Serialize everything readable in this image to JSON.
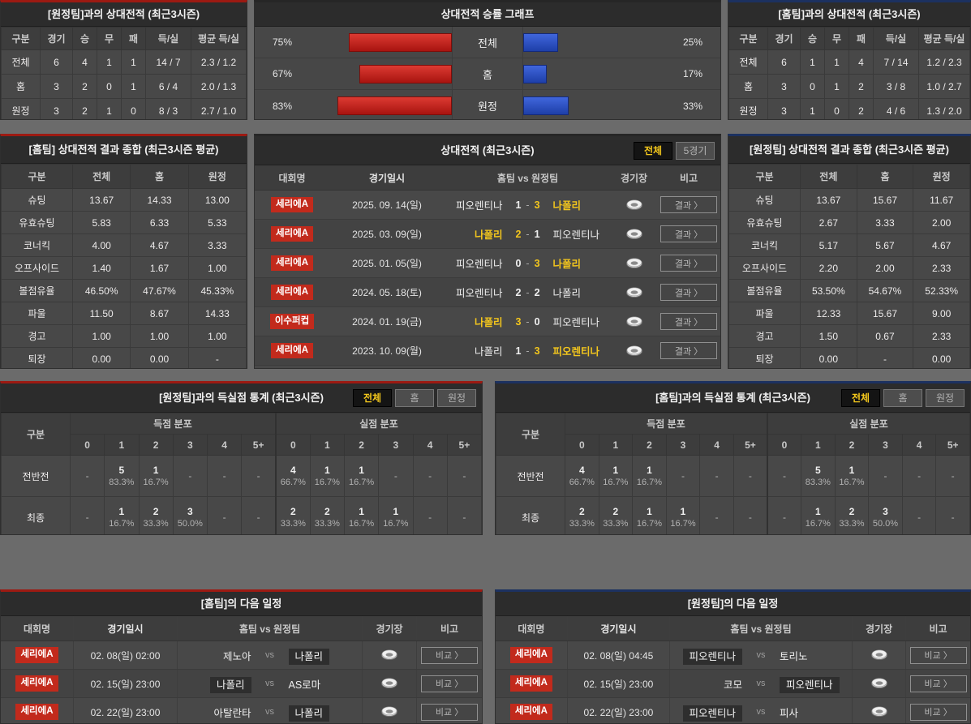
{
  "empty_text": "-",
  "vs_label": "vs",
  "score_separator": "-",
  "accent_colors": {
    "home_side": "#9c1a12",
    "away_side": "#1c3160",
    "win_highlight": "#f3c61d",
    "badge": "#c22a1c"
  },
  "top_left": {
    "title": "[원정팀]과의 상대전적 (최근3시즌)",
    "headers": [
      "구분",
      "경기",
      "승",
      "무",
      "패",
      "득/실",
      "평균 득/실"
    ],
    "rows": [
      [
        "전체",
        "6",
        "4",
        "1",
        "1",
        "14 / 7",
        "2.3 / 1.2"
      ],
      [
        "홈",
        "3",
        "2",
        "0",
        "1",
        "6 / 4",
        "2.0 / 1.3"
      ],
      [
        "원정",
        "3",
        "2",
        "1",
        "0",
        "8 / 3",
        "2.7 / 1.0"
      ]
    ]
  },
  "top_right": {
    "title": "[홈팀]과의 상대전적 (최근3시즌)",
    "headers": [
      "구분",
      "경기",
      "승",
      "무",
      "패",
      "득/실",
      "평균 득/실"
    ],
    "rows": [
      [
        "전체",
        "6",
        "1",
        "1",
        "4",
        "7 / 14",
        "1.2 / 2.3"
      ],
      [
        "홈",
        "3",
        "0",
        "1",
        "2",
        "3 / 8",
        "1.0 / 2.7"
      ],
      [
        "원정",
        "3",
        "1",
        "0",
        "2",
        "4 / 6",
        "1.3 / 2.0"
      ]
    ]
  },
  "chart": {
    "type": "bar",
    "title": "상대전적 승률 그래프",
    "categories": [
      "전체",
      "홈",
      "원정"
    ],
    "home_win_pct": [
      75,
      67,
      83
    ],
    "away_win_pct": [
      25,
      17,
      33
    ],
    "home_color": "#c9231d",
    "away_color": "#2a50c8"
  },
  "stats_home": {
    "title": "[홈팀] 상대전적 결과 종합 (최근3시즌 평균)",
    "headers": [
      "구분",
      "전체",
      "홈",
      "원정"
    ],
    "rows": [
      [
        "슈팅",
        "13.67",
        "14.33",
        "13.00"
      ],
      [
        "유효슈팅",
        "5.83",
        "6.33",
        "5.33"
      ],
      [
        "코너킥",
        "4.00",
        "4.67",
        "3.33"
      ],
      [
        "오프사이드",
        "1.40",
        "1.67",
        "1.00"
      ],
      [
        "볼점유율",
        "46.50%",
        "47.67%",
        "45.33%"
      ],
      [
        "파울",
        "11.50",
        "8.67",
        "14.33"
      ],
      [
        "경고",
        "1.00",
        "1.00",
        "1.00"
      ],
      [
        "퇴장",
        "0.00",
        "0.00",
        "-"
      ]
    ]
  },
  "stats_away": {
    "title": "[원정팀] 상대전적 결과 종합 (최근3시즌 평균)",
    "headers": [
      "구분",
      "전체",
      "홈",
      "원정"
    ],
    "rows": [
      [
        "슈팅",
        "13.67",
        "15.67",
        "11.67"
      ],
      [
        "유효슈팅",
        "2.67",
        "3.33",
        "2.00"
      ],
      [
        "코너킥",
        "5.17",
        "5.67",
        "4.67"
      ],
      [
        "오프사이드",
        "2.20",
        "2.00",
        "2.33"
      ],
      [
        "볼점유율",
        "53.50%",
        "54.67%",
        "52.33%"
      ],
      [
        "파울",
        "12.33",
        "15.67",
        "9.00"
      ],
      [
        "경고",
        "1.50",
        "0.67",
        "2.33"
      ],
      [
        "퇴장",
        "0.00",
        "-",
        "0.00"
      ]
    ]
  },
  "h2h": {
    "title": "상대전적 (최근3시즌)",
    "toggles": [
      {
        "label": "전체",
        "key": "all",
        "active": true
      },
      {
        "label": "5경기",
        "key": "5games",
        "active": false
      }
    ],
    "headers": [
      "대회명",
      "경기일시",
      "홈팀  vs  원정팀",
      "경기장",
      "비고"
    ],
    "action_label": "결과 〉",
    "rows": [
      {
        "league": "세리에A",
        "date": "2025. 09. 14(일)",
        "home": "피오렌티나",
        "hs": "1",
        "as": "3",
        "away": "나폴리",
        "win": "away"
      },
      {
        "league": "세리에A",
        "date": "2025. 03. 09(일)",
        "home": "나폴리",
        "hs": "2",
        "as": "1",
        "away": "피오렌티나",
        "win": "home"
      },
      {
        "league": "세리에A",
        "date": "2025. 01. 05(일)",
        "home": "피오렌티나",
        "hs": "0",
        "as": "3",
        "away": "나폴리",
        "win": "away"
      },
      {
        "league": "세리에A",
        "date": "2024. 05. 18(토)",
        "home": "피오렌티나",
        "hs": "2",
        "as": "2",
        "away": "나폴리",
        "win": "draw"
      },
      {
        "league": "이수퍼컵",
        "date": "2024. 01. 19(금)",
        "home": "나폴리",
        "hs": "3",
        "as": "0",
        "away": "피오렌티나",
        "win": "home"
      },
      {
        "league": "세리에A",
        "date": "2023. 10. 09(월)",
        "home": "나폴리",
        "hs": "1",
        "as": "3",
        "away": "피오렌티나",
        "win": "away"
      }
    ]
  },
  "goals_left": {
    "title": "[원정팀]과의 득실점 통계 (최근3시즌)",
    "toggles": [
      {
        "label": "전체",
        "key": "all",
        "active": true
      },
      {
        "label": "홈",
        "key": "home",
        "active": false
      },
      {
        "label": "원정",
        "key": "away",
        "active": false
      }
    ],
    "corner": "구분",
    "groups": [
      "득점 분포",
      "실점 분포"
    ],
    "cols": [
      "0",
      "1",
      "2",
      "3",
      "4",
      "5+"
    ],
    "rows": [
      {
        "label": "전반전",
        "scored": [
          null,
          {
            "n": "5",
            "p": "83.3%"
          },
          {
            "n": "1",
            "p": "16.7%"
          },
          null,
          null,
          null
        ],
        "conceded": [
          {
            "n": "4",
            "p": "66.7%"
          },
          {
            "n": "1",
            "p": "16.7%"
          },
          {
            "n": "1",
            "p": "16.7%"
          },
          null,
          null,
          null
        ]
      },
      {
        "label": "최종",
        "scored": [
          null,
          {
            "n": "1",
            "p": "16.7%"
          },
          {
            "n": "2",
            "p": "33.3%"
          },
          {
            "n": "3",
            "p": "50.0%"
          },
          null,
          null
        ],
        "conceded": [
          {
            "n": "2",
            "p": "33.3%"
          },
          {
            "n": "2",
            "p": "33.3%"
          },
          {
            "n": "1",
            "p": "16.7%"
          },
          {
            "n": "1",
            "p": "16.7%"
          },
          null,
          null
        ]
      }
    ]
  },
  "goals_right": {
    "title": "[홈팀]과의 득실점 통계 (최근3시즌)",
    "toggles": [
      {
        "label": "전체",
        "key": "all",
        "active": true
      },
      {
        "label": "홈",
        "key": "home",
        "active": false
      },
      {
        "label": "원정",
        "key": "away",
        "active": false
      }
    ],
    "corner": "구분",
    "groups": [
      "득점 분포",
      "실점 분포"
    ],
    "cols": [
      "0",
      "1",
      "2",
      "3",
      "4",
      "5+"
    ],
    "rows": [
      {
        "label": "전반전",
        "scored": [
          {
            "n": "4",
            "p": "66.7%"
          },
          {
            "n": "1",
            "p": "16.7%"
          },
          {
            "n": "1",
            "p": "16.7%"
          },
          null,
          null,
          null
        ],
        "conceded": [
          null,
          {
            "n": "5",
            "p": "83.3%"
          },
          {
            "n": "1",
            "p": "16.7%"
          },
          null,
          null,
          null
        ]
      },
      {
        "label": "최종",
        "scored": [
          {
            "n": "2",
            "p": "33.3%"
          },
          {
            "n": "2",
            "p": "33.3%"
          },
          {
            "n": "1",
            "p": "16.7%"
          },
          {
            "n": "1",
            "p": "16.7%"
          },
          null,
          null
        ],
        "conceded": [
          null,
          {
            "n": "1",
            "p": "16.7%"
          },
          {
            "n": "2",
            "p": "33.3%"
          },
          {
            "n": "3",
            "p": "50.0%"
          },
          null,
          null
        ]
      }
    ]
  },
  "schedule_home": {
    "title": "[홈팀]의 다음 일정",
    "headers": [
      "대회명",
      "경기일시",
      "홈팀  vs  원정팀",
      "경기장",
      "비고"
    ],
    "action_label": "비교 〉",
    "rows": [
      {
        "league": "세리에A",
        "date": "02. 08(일) 02:00",
        "home": "제노아",
        "away": "나폴리",
        "highlight": "away"
      },
      {
        "league": "세리에A",
        "date": "02. 15(일) 23:00",
        "home": "나폴리",
        "away": "AS로마",
        "highlight": "home"
      },
      {
        "league": "세리에A",
        "date": "02. 22(일) 23:00",
        "home": "아탈란타",
        "away": "나폴리",
        "highlight": "away"
      }
    ]
  },
  "schedule_away": {
    "title": "[원정팀]의 다음 일정",
    "headers": [
      "대회명",
      "경기일시",
      "홈팀  vs  원정팀",
      "경기장",
      "비고"
    ],
    "action_label": "비교 〉",
    "rows": [
      {
        "league": "세리에A",
        "date": "02. 08(일) 04:45",
        "home": "피오렌티나",
        "away": "토리노",
        "highlight": "home"
      },
      {
        "league": "세리에A",
        "date": "02. 15(일) 23:00",
        "home": "코모",
        "away": "피오렌티나",
        "highlight": "away"
      },
      {
        "league": "세리에A",
        "date": "02. 22(일) 23:00",
        "home": "피오렌티나",
        "away": "피사",
        "highlight": "home"
      }
    ]
  }
}
